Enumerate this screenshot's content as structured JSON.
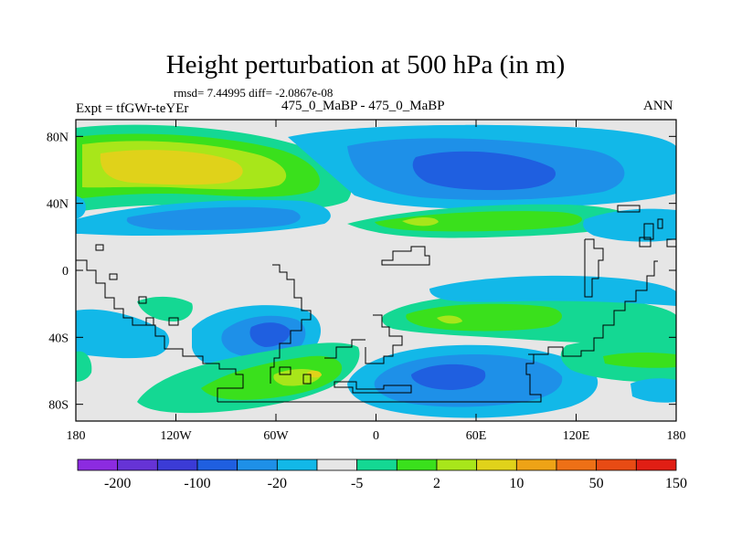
{
  "title": "Height perturbation at 500 hPa (in m)",
  "stats": "rmsd= 7.44995 diff= -2.0867e-08",
  "experiment": "Expt = tfGWr-teYEr",
  "case_pair": "475_0_MaBP - 475_0_MaBP",
  "season": "ANN",
  "x_ticks": [
    "180",
    "120W",
    "60W",
    "0",
    "60E",
    "120E",
    "180"
  ],
  "y_ticks": [
    "80N",
    "40N",
    "0",
    "40S",
    "80S"
  ],
  "colorbar": {
    "colors": [
      "#8c2be0",
      "#6633d6",
      "#3b3bd6",
      "#1f5fe0",
      "#1e90e8",
      "#12b8e8",
      "#e6e6e6",
      "#14d893",
      "#3ae01c",
      "#a8e61a",
      "#e0d21a",
      "#eea316",
      "#ee7016",
      "#e84b14",
      "#e01e14"
    ],
    "labels": [
      "-200",
      "-100",
      "-20",
      "-5",
      "2",
      "10",
      "50",
      "150"
    ]
  },
  "field_colors": {
    "background": "#e6e6e6",
    "neg_light": "#12b8e8",
    "neg_mid": "#1e90e8",
    "neg_dark": "#1f5fe0",
    "pos_light": "#14d893",
    "pos_mid": "#3ae01c",
    "pos_yellow": "#a8e61a",
    "pos_orange": "#e0d21a"
  }
}
